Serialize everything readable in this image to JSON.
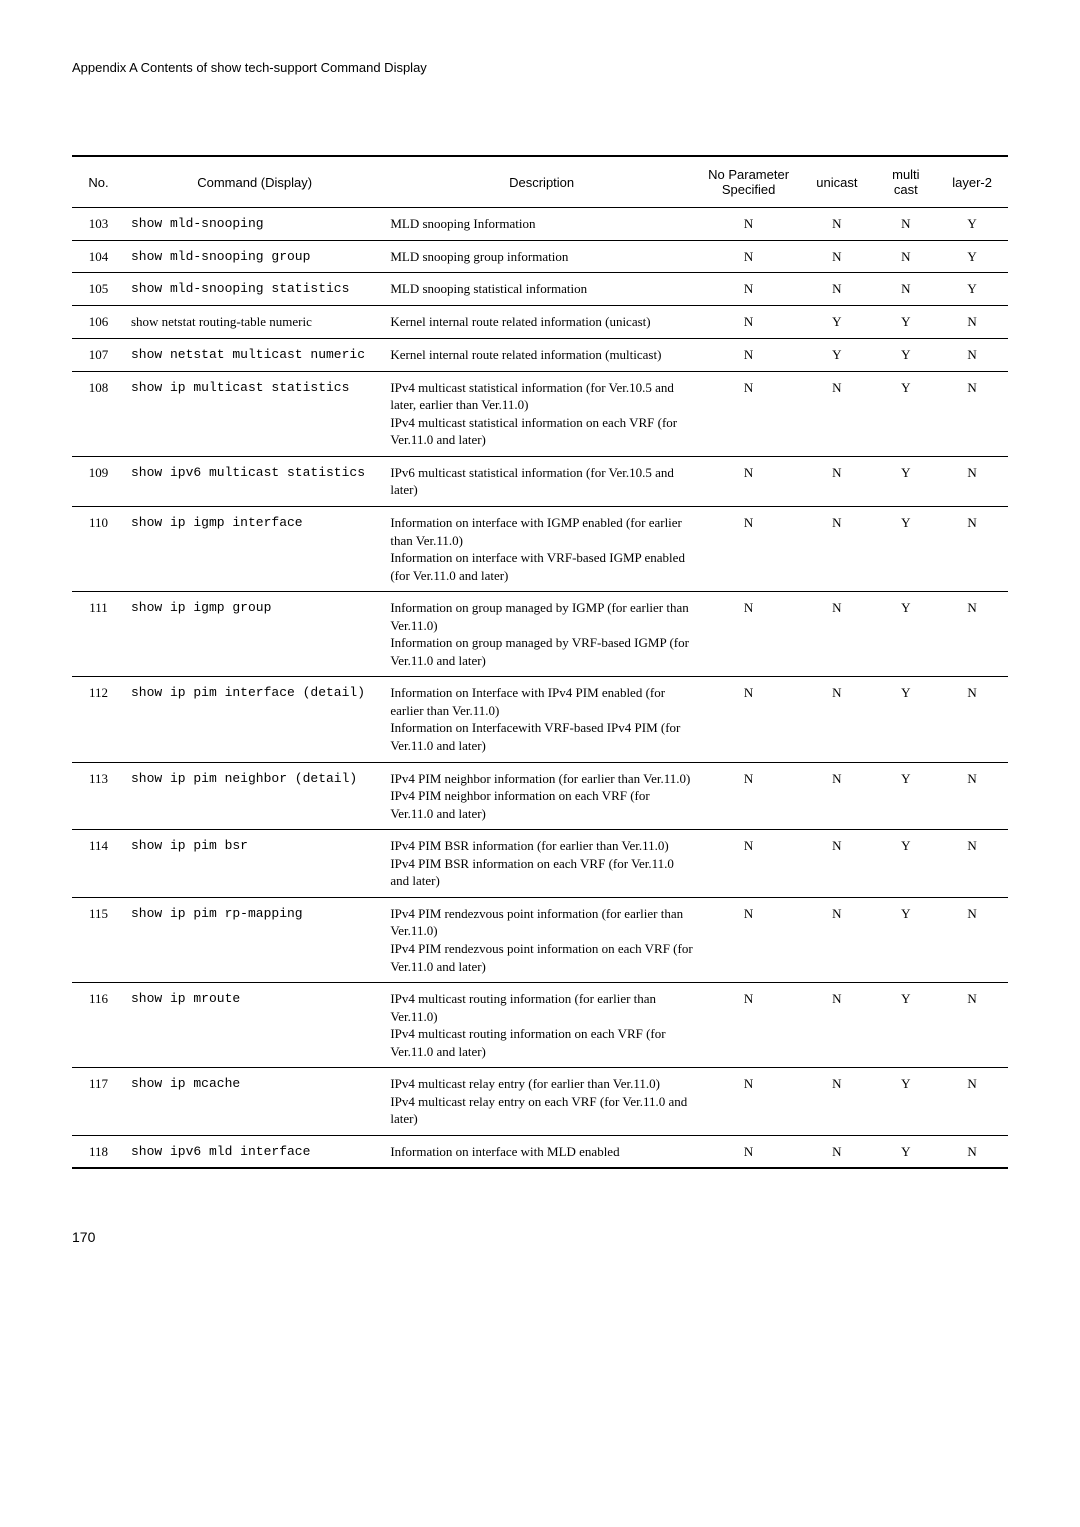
{
  "header": "Appendix A Contents of show tech-support Command Display",
  "footer": "170",
  "columns": {
    "no": "No.",
    "cmd": "Command (Display)",
    "desc": "Description",
    "np": "No Parameter Specified",
    "uc": "unicast",
    "mc": "multi cast",
    "l2": "layer-2"
  },
  "rows": [
    {
      "no": "103",
      "cmd": "show mld-snooping",
      "cmd_serif": false,
      "desc": "MLD snooping Information",
      "np": "N",
      "uc": "N",
      "mc": "N",
      "l2": "Y"
    },
    {
      "no": "104",
      "cmd": "show mld-snooping group",
      "cmd_serif": false,
      "desc": "MLD snooping group information",
      "np": "N",
      "uc": "N",
      "mc": "N",
      "l2": "Y"
    },
    {
      "no": "105",
      "cmd": "show mld-snooping statistics",
      "cmd_serif": false,
      "desc": "MLD snooping statistical information",
      "np": "N",
      "uc": "N",
      "mc": "N",
      "l2": "Y"
    },
    {
      "no": "106",
      "cmd": "show netstat routing-table numeric",
      "cmd_serif": true,
      "desc": "Kernel internal route related information (unicast)",
      "np": "N",
      "uc": "Y",
      "mc": "Y",
      "l2": "N"
    },
    {
      "no": "107",
      "cmd": "show netstat multicast numeric",
      "cmd_serif": false,
      "desc": "Kernel internal route related information (multicast)",
      "np": "N",
      "uc": "Y",
      "mc": "Y",
      "l2": "N"
    },
    {
      "no": "108",
      "cmd": "show ip multicast statistics",
      "cmd_serif": false,
      "desc": "IPv4 multicast statistical information (for Ver.10.5 and later, earlier than Ver.11.0)\nIPv4 multicast statistical information on each VRF (for Ver.11.0 and later)",
      "np": "N",
      "uc": "N",
      "mc": "Y",
      "l2": "N"
    },
    {
      "no": "109",
      "cmd": "show ipv6 multicast statistics",
      "cmd_serif": false,
      "desc": "IPv6 multicast statistical information (for Ver.10.5 and later)",
      "np": "N",
      "uc": "N",
      "mc": "Y",
      "l2": "N"
    },
    {
      "no": "110",
      "cmd": "show ip igmp interface",
      "cmd_serif": false,
      "desc": "Information on interface with IGMP enabled (for earlier than Ver.11.0)\nInformation on interface with VRF-based IGMP enabled (for Ver.11.0 and later)",
      "np": "N",
      "uc": "N",
      "mc": "Y",
      "l2": "N"
    },
    {
      "no": "111",
      "cmd": "show ip igmp group",
      "cmd_serif": false,
      "desc": "Information on group managed by IGMP (for earlier than Ver.11.0)\nInformation on group managed by VRF-based IGMP (for Ver.11.0 and later)",
      "np": "N",
      "uc": "N",
      "mc": "Y",
      "l2": "N"
    },
    {
      "no": "112",
      "cmd": "show ip pim interface (detail)",
      "cmd_serif": false,
      "desc": "Information on Interface with IPv4 PIM enabled (for earlier than Ver.11.0)\nInformation on Interfacewith VRF-based IPv4 PIM (for Ver.11.0 and later)",
      "np": "N",
      "uc": "N",
      "mc": "Y",
      "l2": "N"
    },
    {
      "no": "113",
      "cmd": "show ip pim neighbor (detail)",
      "cmd_serif": false,
      "desc": "IPv4 PIM neighbor information (for earlier than Ver.11.0)\nIPv4 PIM neighbor information on each VRF (for Ver.11.0 and later)",
      "np": "N",
      "uc": "N",
      "mc": "Y",
      "l2": "N"
    },
    {
      "no": "114",
      "cmd": "show ip pim bsr",
      "cmd_serif": false,
      "desc": "IPv4 PIM BSR information (for earlier than  Ver.11.0)\nIPv4 PIM BSR information on each VRF (for Ver.11.0 and later)",
      "np": "N",
      "uc": "N",
      "mc": "Y",
      "l2": "N"
    },
    {
      "no": "115",
      "cmd": "show ip pim rp-mapping",
      "cmd_serif": false,
      "desc": "IPv4 PIM rendezvous point information (for earlier than Ver.11.0)\nIPv4 PIM rendezvous point information on each VRF (for Ver.11.0 and later)",
      "np": "N",
      "uc": "N",
      "mc": "Y",
      "l2": "N"
    },
    {
      "no": "116",
      "cmd": "show ip mroute",
      "cmd_serif": false,
      "desc": "IPv4 multicast routing information (for earlier than Ver.11.0)\nIPv4 multicast routing information on each VRF (for Ver.11.0 and later)",
      "np": "N",
      "uc": "N",
      "mc": "Y",
      "l2": "N"
    },
    {
      "no": "117",
      "cmd": "show ip mcache",
      "cmd_serif": false,
      "desc": "IPv4 multicast relay entry (for earlier than  Ver.11.0)\nIPv4 multicast relay entry on each VRF (for Ver.11.0 and later)",
      "np": "N",
      "uc": "N",
      "mc": "Y",
      "l2": "N"
    },
    {
      "no": "118",
      "cmd": "show ipv6 mld interface",
      "cmd_serif": false,
      "desc": "Information on interface with MLD enabled",
      "np": "N",
      "uc": "N",
      "mc": "Y",
      "l2": "N"
    }
  ]
}
